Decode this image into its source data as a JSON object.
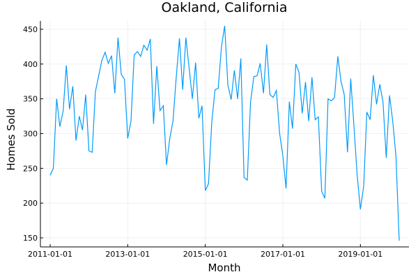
{
  "chart_data": {
    "type": "line",
    "title": "Oakland, California",
    "xlabel": "Month",
    "ylabel": "Homes Sold",
    "x_start": "2011-01",
    "x_step": "1 month",
    "x_ticks": [
      "2011-01-01",
      "2013-01-01",
      "2015-01-01",
      "2017-01-01",
      "2019-01-01"
    ],
    "y_ticks": [
      150,
      200,
      250,
      300,
      350,
      400,
      450
    ],
    "ylim": [
      137,
      462
    ],
    "grid": true,
    "legend": false,
    "color": "#009AFA",
    "series": [
      {
        "values": [
          240,
          250,
          350,
          310,
          332,
          398,
          335,
          368,
          290,
          325,
          305,
          356,
          275,
          273,
          360,
          383,
          405,
          417,
          401,
          412,
          358,
          438,
          385,
          378,
          293,
          318,
          413,
          418,
          411,
          427,
          420,
          436,
          314,
          397,
          333,
          340,
          255,
          292,
          318,
          380,
          437,
          363,
          438,
          394,
          350,
          402,
          322,
          340,
          218,
          228,
          315,
          363,
          365,
          425,
          455,
          370,
          349,
          391,
          350,
          408,
          237,
          233,
          345,
          382,
          383,
          401,
          358,
          428,
          356,
          352,
          362,
          300,
          268,
          221,
          346,
          307,
          400,
          388,
          329,
          374,
          318,
          381,
          320,
          324,
          217,
          207,
          350,
          347,
          352,
          411,
          375,
          356,
          273,
          379,
          310,
          240,
          191,
          224,
          331,
          320,
          384,
          342,
          371,
          345,
          265,
          355,
          318,
          267,
          146
        ]
      }
    ]
  }
}
